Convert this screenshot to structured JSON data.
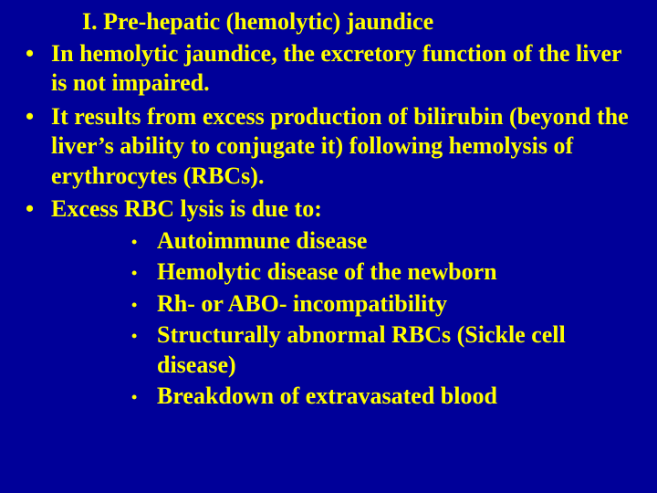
{
  "slide": {
    "background_color": "#000099",
    "text_color": "#ffff00",
    "font_family": "Times New Roman",
    "font_weight": "bold",
    "title": "I. Pre-hepatic (hemolytic) jaundice",
    "title_fontsize": 26,
    "body_fontsize": 26,
    "bullets": [
      "In hemolytic jaundice, the excretory function of the liver is not impaired.",
      "It results from excess production of bilirubin (beyond the liver’s ability to conjugate it) following hemolysis of erythrocytes (RBCs).",
      "Excess RBC lysis is due to:"
    ],
    "sub_bullets": [
      "Autoimmune disease",
      "Hemolytic disease of the newborn",
      "Rh- or ABO- incompatibility",
      "Structurally abnormal RBCs (Sickle cell disease)",
      "Breakdown of extravasated blood"
    ]
  }
}
